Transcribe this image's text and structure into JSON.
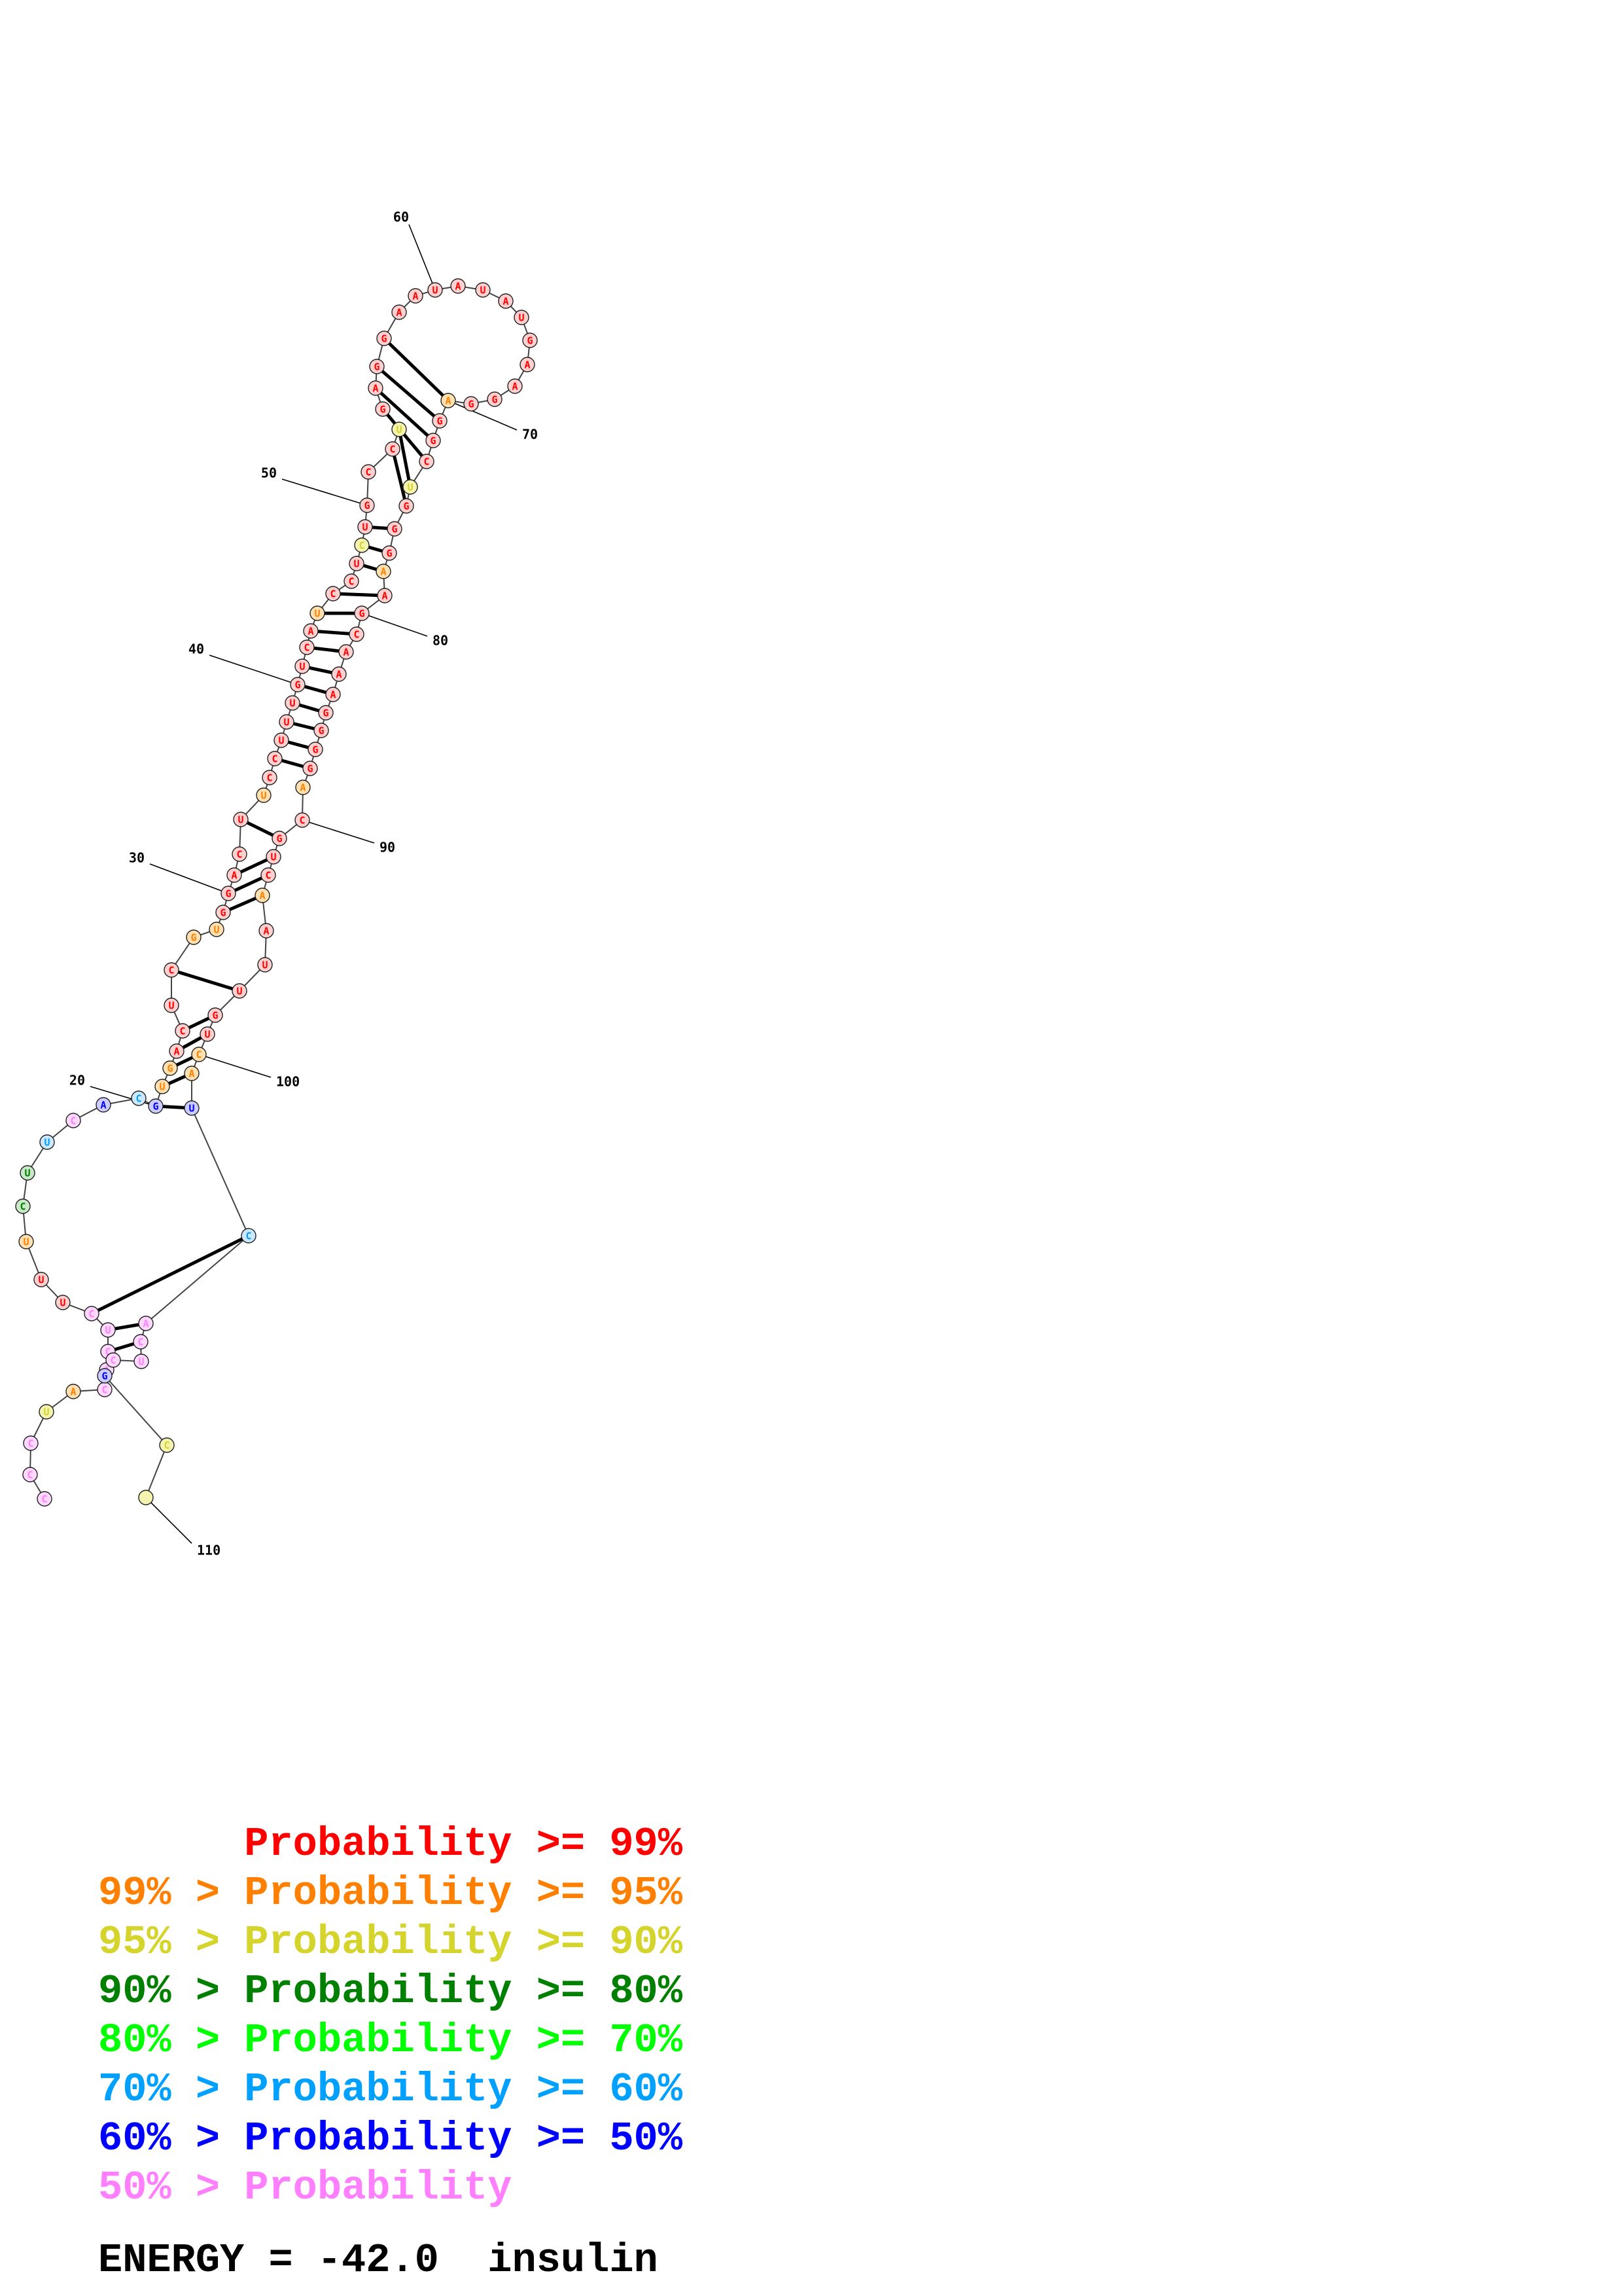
{
  "probability_levels": [
    {
      "id": "p99",
      "color": "#ff0000"
    },
    {
      "id": "p95",
      "color": "#ff8000"
    },
    {
      "id": "p90",
      "color": "#d4d42c"
    },
    {
      "id": "p80",
      "color": "#008000"
    },
    {
      "id": "p70",
      "color": "#00ff00"
    },
    {
      "id": "p60",
      "color": "#00a0ff"
    },
    {
      "id": "p50",
      "color": "#0000ff"
    },
    {
      "id": "p0",
      "color": "#ff80ff"
    }
  ],
  "nucleotide_fill": {
    "p99": "#ffd0d0",
    "p95": "#ffe0b0",
    "p90": "#f4f4b0",
    "p80": "#c8e8c8",
    "p70": "#ccffcc",
    "p60": "#cce8ff",
    "p50": "#ccccff",
    "p0": "#ffd8ff"
  },
  "structure": {
    "nucleotides": [
      {
        "n": "",
        "b": "C",
        "p": "p0"
      },
      {
        "n": "",
        "b": "C",
        "p": "p0"
      },
      {
        "n": "",
        "b": "C",
        "p": "p0"
      },
      {
        "n": "",
        "b": "U",
        "p": "p90"
      },
      {
        "n": "",
        "b": "A",
        "p": "p95"
      },
      {
        "n": "",
        "b": "C",
        "p": "p0"
      },
      {
        "n": "",
        "b": "A",
        "p": "p0"
      },
      {
        "n": "",
        "b": "C",
        "p": "p0"
      },
      {
        "n": "",
        "b": "U",
        "p": "p0"
      },
      {
        "n": "",
        "b": "C",
        "p": "p0"
      },
      {
        "n": "",
        "b": "U",
        "p": "p99"
      },
      {
        "n": "",
        "b": "U",
        "p": "p99"
      },
      {
        "n": "",
        "b": "U",
        "p": "p95"
      },
      {
        "n": "",
        "b": "C",
        "p": "p80"
      },
      {
        "n": "",
        "b": "U",
        "p": "p80"
      },
      {
        "n": "",
        "b": "U",
        "p": "p60"
      },
      {
        "n": "",
        "b": "C",
        "p": "p0"
      },
      {
        "n": "",
        "b": "A",
        "p": "p50"
      },
      {
        "n": "",
        "b": "C",
        "p": "p60"
      },
      {
        "n": "20",
        "b": "G",
        "p": "p50"
      },
      {
        "n": "",
        "b": "U",
        "p": "p95"
      },
      {
        "n": "",
        "b": "G",
        "p": "p95"
      },
      {
        "n": "",
        "b": "A",
        "p": "p99"
      },
      {
        "n": "",
        "b": "C",
        "p": "p99"
      },
      {
        "n": "",
        "b": "U",
        "p": "p99"
      },
      {
        "n": "",
        "b": "C",
        "p": "p99"
      },
      {
        "n": "",
        "b": "G",
        "p": "p95"
      },
      {
        "n": "",
        "b": "U",
        "p": "p95"
      },
      {
        "n": "",
        "b": "G",
        "p": "p99"
      },
      {
        "n": "30",
        "b": "G",
        "p": "p99"
      },
      {
        "n": "",
        "b": "A",
        "p": "p99"
      },
      {
        "n": "",
        "b": "C",
        "p": "p99"
      },
      {
        "n": "",
        "b": "U",
        "p": "p99"
      },
      {
        "n": "",
        "b": "U",
        "p": "p95"
      },
      {
        "n": "",
        "b": "C",
        "p": "p99"
      },
      {
        "n": "",
        "b": "C",
        "p": "p99"
      },
      {
        "n": "",
        "b": "U",
        "p": "p99"
      },
      {
        "n": "",
        "b": "U",
        "p": "p99"
      },
      {
        "n": "",
        "b": "U",
        "p": "p99"
      },
      {
        "n": "40",
        "b": "G",
        "p": "p99"
      },
      {
        "n": "",
        "b": "U",
        "p": "p99"
      },
      {
        "n": "",
        "b": "C",
        "p": "p99"
      },
      {
        "n": "",
        "b": "A",
        "p": "p99"
      },
      {
        "n": "",
        "b": "U",
        "p": "p95"
      },
      {
        "n": "",
        "b": "C",
        "p": "p99"
      },
      {
        "n": "",
        "b": "C",
        "p": "p99"
      },
      {
        "n": "",
        "b": "U",
        "p": "p99"
      },
      {
        "n": "",
        "b": "C",
        "p": "p90"
      },
      {
        "n": "",
        "b": "U",
        "p": "p99"
      },
      {
        "n": "50",
        "b": "G",
        "p": "p99"
      },
      {
        "n": "",
        "b": "C",
        "p": "p99"
      },
      {
        "n": "",
        "b": "C",
        "p": "p99"
      },
      {
        "n": "",
        "b": "U",
        "p": "p90"
      },
      {
        "n": "",
        "b": "G",
        "p": "p99"
      },
      {
        "n": "",
        "b": "A",
        "p": "p99"
      },
      {
        "n": "",
        "b": "G",
        "p": "p99"
      },
      {
        "n": "",
        "b": "G",
        "p": "p99"
      },
      {
        "n": "",
        "b": "A",
        "p": "p99"
      },
      {
        "n": "",
        "b": "A",
        "p": "p99"
      },
      {
        "n": "60",
        "b": "U",
        "p": "p99"
      },
      {
        "n": "",
        "b": "A",
        "p": "p99"
      },
      {
        "n": "",
        "b": "U",
        "p": "p99"
      },
      {
        "n": "",
        "b": "A",
        "p": "p99"
      },
      {
        "n": "",
        "b": "U",
        "p": "p99"
      },
      {
        "n": "",
        "b": "G",
        "p": "p99"
      },
      {
        "n": "",
        "b": "A",
        "p": "p99"
      },
      {
        "n": "",
        "b": "A",
        "p": "p99"
      },
      {
        "n": "",
        "b": "G",
        "p": "p99"
      },
      {
        "n": "",
        "b": "G",
        "p": "p99"
      },
      {
        "n": "70",
        "b": "A",
        "p": "p95"
      },
      {
        "n": "",
        "b": "G",
        "p": "p99"
      },
      {
        "n": "",
        "b": "G",
        "p": "p99"
      },
      {
        "n": "",
        "b": "C",
        "p": "p99"
      },
      {
        "n": "",
        "b": "U",
        "p": "p90"
      },
      {
        "n": "",
        "b": "G",
        "p": "p99"
      },
      {
        "n": "",
        "b": "G",
        "p": "p99"
      },
      {
        "n": "",
        "b": "G",
        "p": "p99"
      },
      {
        "n": "",
        "b": "A",
        "p": "p95"
      },
      {
        "n": "",
        "b": "A",
        "p": "p99"
      },
      {
        "n": "80",
        "b": "G",
        "p": "p99"
      },
      {
        "n": "",
        "b": "C",
        "p": "p99"
      },
      {
        "n": "",
        "b": "A",
        "p": "p99"
      },
      {
        "n": "",
        "b": "A",
        "p": "p99"
      },
      {
        "n": "",
        "b": "A",
        "p": "p99"
      },
      {
        "n": "",
        "b": "G",
        "p": "p99"
      },
      {
        "n": "",
        "b": "G",
        "p": "p99"
      },
      {
        "n": "",
        "b": "G",
        "p": "p99"
      },
      {
        "n": "",
        "b": "G",
        "p": "p99"
      },
      {
        "n": "",
        "b": "A",
        "p": "p95"
      },
      {
        "n": "90",
        "b": "C",
        "p": "p99"
      },
      {
        "n": "",
        "b": "G",
        "p": "p99"
      },
      {
        "n": "",
        "b": "U",
        "p": "p99"
      },
      {
        "n": "",
        "b": "C",
        "p": "p99"
      },
      {
        "n": "",
        "b": "A",
        "p": "p95"
      },
      {
        "n": "",
        "b": "A",
        "p": "p99"
      },
      {
        "n": "",
        "b": "U",
        "p": "p99"
      },
      {
        "n": "",
        "b": "U",
        "p": "p99"
      },
      {
        "n": "",
        "b": "G",
        "p": "p99"
      },
      {
        "n": "",
        "b": "U",
        "p": "p99"
      },
      {
        "n": "100",
        "b": "C",
        "p": "p95"
      },
      {
        "n": "",
        "b": "A",
        "p": "p95"
      },
      {
        "n": "",
        "b": "U",
        "p": "p50"
      },
      {
        "n": "",
        "b": "C",
        "p": "p60"
      },
      {
        "n": "",
        "b": "A",
        "p": "p0"
      },
      {
        "n": "",
        "b": "C",
        "p": "p0"
      },
      {
        "n": "",
        "b": "U",
        "p": "p0"
      },
      {
        "n": "",
        "b": "C",
        "p": "p0"
      },
      {
        "n": "",
        "b": "G",
        "p": "p50"
      },
      {
        "n": "",
        "b": "C",
        "p": "p90"
      },
      {
        "n": "110",
        "b": "",
        "p": "p90"
      }
    ]
  },
  "legend": [
    {
      "prefix": "",
      "label": "Probability >= 99%",
      "color": "#ff0000"
    },
    {
      "prefix": "99% > ",
      "label": "Probability >= 95%",
      "color": "#ff8000"
    },
    {
      "prefix": "95% > ",
      "label": "Probability >= 90%",
      "color": "#d4d42c"
    },
    {
      "prefix": "90% > ",
      "label": "Probability >= 80%",
      "color": "#008000"
    },
    {
      "prefix": "80% > ",
      "label": "Probability >= 70%",
      "color": "#00ff00"
    },
    {
      "prefix": "70% > ",
      "label": "Probability >= 60%",
      "color": "#00a0ff"
    },
    {
      "prefix": "60% > ",
      "label": "Probability >= 50%",
      "color": "#0000ff"
    },
    {
      "prefix": "50% > ",
      "label": "Probability",
      "color": "#ff80ff"
    }
  ],
  "energy": "ENERGY = -42.0  insulin"
}
